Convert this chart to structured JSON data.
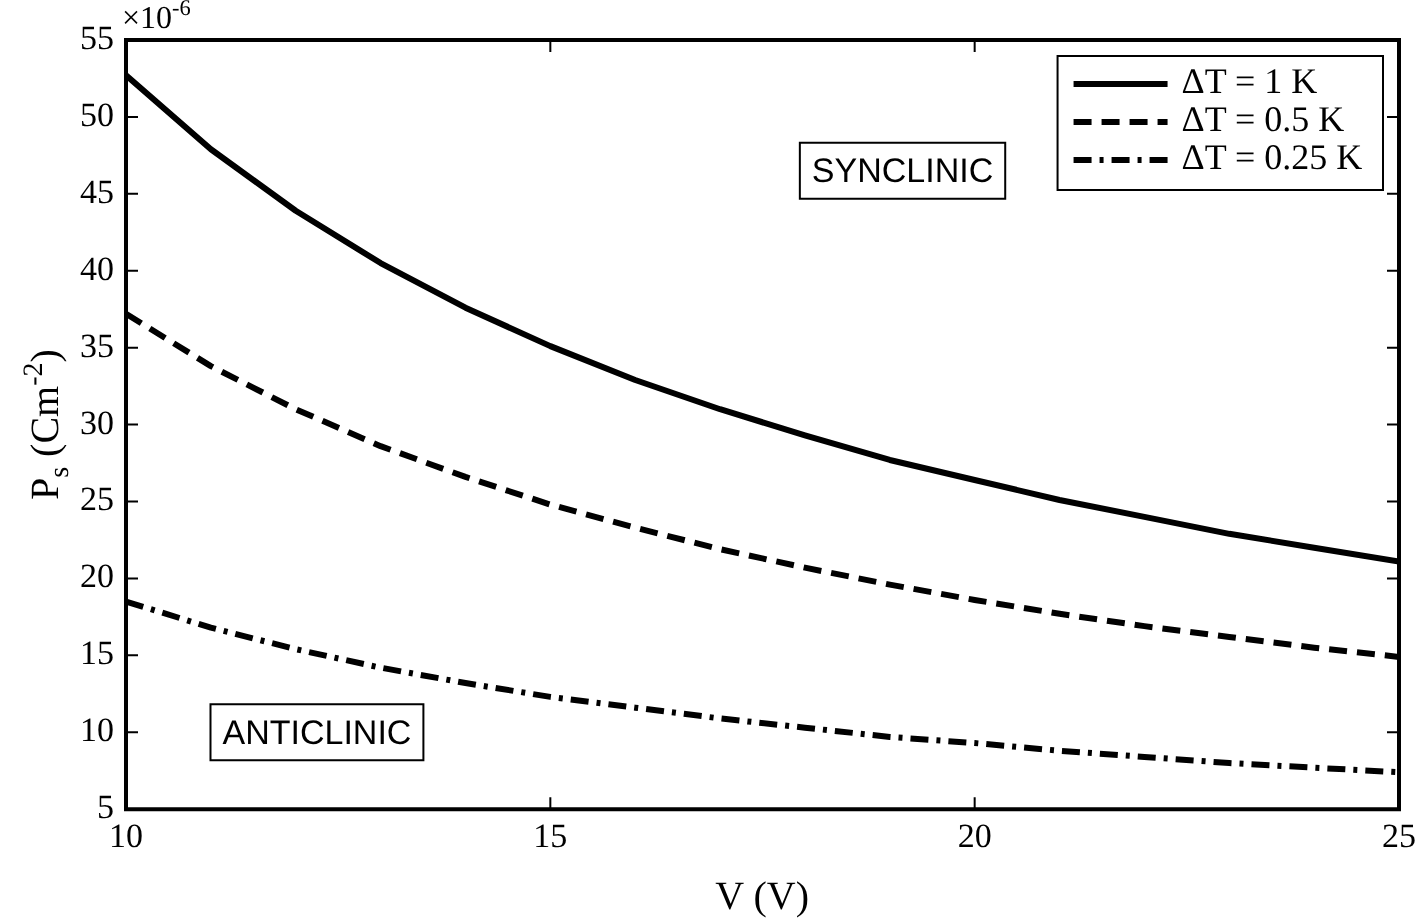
{
  "chart_data": {
    "type": "line",
    "xlabel": "V (V)",
    "ylabel": "P$_{s}$ (Cm$^{-2}$)",
    "x": [
      10,
      11,
      12,
      13,
      14,
      15,
      16,
      17,
      18,
      19,
      20,
      21,
      22,
      23,
      24,
      25
    ],
    "xlim": [
      10,
      25
    ],
    "xticks": [
      10,
      15,
      20,
      25
    ],
    "ylim": [
      5,
      55
    ],
    "yticks": [
      5,
      10,
      15,
      20,
      25,
      30,
      35,
      40,
      45,
      50,
      55
    ],
    "grid": false,
    "legend": "top right",
    "marker": "none",
    "series": [
      {
        "name": "ΔT = 1 K",
        "color": "#000000",
        "line_style": "solid",
        "values": [
          52.7,
          47.9,
          43.9,
          40.5,
          37.6,
          35.1,
          32.9,
          31.0,
          29.3,
          27.7,
          26.4,
          25.1,
          24.0,
          22.9,
          22.0,
          21.1
        ]
      },
      {
        "name": "ΔT = 0.5 K",
        "color": "#000000",
        "line_style": "dashed",
        "values": [
          37.2,
          33.8,
          31.0,
          28.6,
          26.6,
          24.8,
          23.3,
          21.9,
          20.7,
          19.6,
          18.6,
          17.7,
          16.9,
          16.2,
          15.5,
          14.9
        ]
      },
      {
        "name": "ΔT = 0.25 K",
        "color": "#000000",
        "line_style": "dashdot",
        "values": [
          18.5,
          16.8,
          15.4,
          14.2,
          13.2,
          12.3,
          11.6,
          10.9,
          10.3,
          9.7,
          9.3,
          8.8,
          8.4,
          8.0,
          7.7,
          7.4
        ]
      }
    ],
    "annotations": [
      "×10$^{-6}$",
      "SYNCLINIC",
      "ANTICLINIC"
    ]
  }
}
